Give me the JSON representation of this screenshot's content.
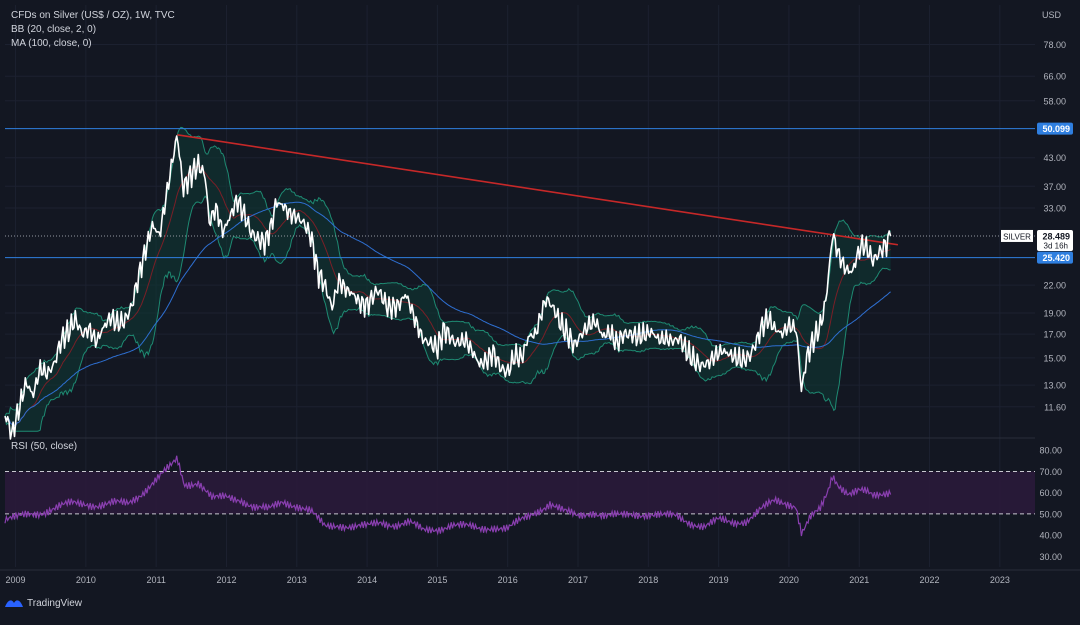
{
  "header": {
    "title": "CFDs on Silver (US$ / OZ), 1W, TVC",
    "indicator_bb": "BB (20, close, 2, 0)",
    "indicator_ma": "MA (100, close, 0)",
    "currency": "USD"
  },
  "rsi": {
    "label": "RSI (50, close)"
  },
  "footer": {
    "brand": "TradingView"
  },
  "colors": {
    "background": "#131722",
    "price": "#ffffff",
    "bb_basis": "#7a1f27",
    "bb_band": "#1e8a72",
    "bb_fill": "#0f3b35",
    "ma": "#2e6fd1",
    "trendline": "#c62828",
    "hline": "#2f7fe0",
    "rsi_line": "#8a3fb0",
    "rsi_fill": "#2a1a3a"
  },
  "chart_data": [
    {
      "type": "line",
      "symbol": "SILVER",
      "countdown": "3d 16h",
      "last_price": 28.489,
      "x_axis_ticks": [
        "2009",
        "2010",
        "2011",
        "2012",
        "2013",
        "2014",
        "2015",
        "2016",
        "2017",
        "2018",
        "2019",
        "2020",
        "2021",
        "2022",
        "2023"
      ],
      "y_axis_ticks": [
        78.0,
        66.0,
        58.0,
        50.099,
        43.0,
        37.0,
        33.0,
        28.489,
        25.42,
        22.0,
        19.0,
        17.0,
        15.0,
        13.0,
        11.6
      ],
      "y_scale": "log",
      "ylim": [
        10.0,
        96.0
      ],
      "xlim": [
        2008.85,
        2023.5
      ],
      "horizontal_lines": [
        50.099,
        25.42
      ],
      "trendline": {
        "from": [
          2011.3,
          48.5
        ],
        "to": [
          2021.55,
          27.2
        ]
      },
      "price_series": [
        [
          2008.85,
          11.2
        ],
        [
          2008.95,
          10.0
        ],
        [
          2009.05,
          11.5
        ],
        [
          2009.15,
          13.2
        ],
        [
          2009.25,
          12.3
        ],
        [
          2009.35,
          14.2
        ],
        [
          2009.45,
          13.8
        ],
        [
          2009.55,
          14.5
        ],
        [
          2009.65,
          16.5
        ],
        [
          2009.75,
          17.2
        ],
        [
          2009.85,
          18.4
        ],
        [
          2009.95,
          17.0
        ],
        [
          2010.05,
          17.5
        ],
        [
          2010.15,
          16.3
        ],
        [
          2010.25,
          17.6
        ],
        [
          2010.35,
          18.6
        ],
        [
          2010.45,
          18.0
        ],
        [
          2010.55,
          18.2
        ],
        [
          2010.65,
          19.6
        ],
        [
          2010.75,
          23.0
        ],
        [
          2010.85,
          26.5
        ],
        [
          2010.95,
          30.2
        ],
        [
          2011.05,
          28.5
        ],
        [
          2011.15,
          35.5
        ],
        [
          2011.25,
          44.0
        ],
        [
          2011.3,
          48.5
        ],
        [
          2011.38,
          36.5
        ],
        [
          2011.5,
          39.5
        ],
        [
          2011.6,
          41.5
        ],
        [
          2011.7,
          39.0
        ],
        [
          2011.75,
          30.5
        ],
        [
          2011.85,
          33.0
        ],
        [
          2011.95,
          29.0
        ],
        [
          2012.05,
          31.5
        ],
        [
          2012.15,
          34.5
        ],
        [
          2012.25,
          32.0
        ],
        [
          2012.35,
          29.0
        ],
        [
          2012.45,
          28.0
        ],
        [
          2012.55,
          27.5
        ],
        [
          2012.65,
          30.5
        ],
        [
          2012.7,
          34.0
        ],
        [
          2012.8,
          33.5
        ],
        [
          2012.9,
          32.0
        ],
        [
          2013.0,
          31.5
        ],
        [
          2013.1,
          30.5
        ],
        [
          2013.2,
          28.5
        ],
        [
          2013.3,
          23.5
        ],
        [
          2013.4,
          22.0
        ],
        [
          2013.5,
          19.5
        ],
        [
          2013.6,
          22.5
        ],
        [
          2013.7,
          21.5
        ],
        [
          2013.8,
          21.0
        ],
        [
          2013.9,
          20.0
        ],
        [
          2014.0,
          19.8
        ],
        [
          2014.15,
          21.5
        ],
        [
          2014.3,
          19.5
        ],
        [
          2014.45,
          19.8
        ],
        [
          2014.55,
          21.0
        ],
        [
          2014.7,
          18.0
        ],
        [
          2014.8,
          16.5
        ],
        [
          2014.9,
          16.2
        ],
        [
          2015.0,
          15.8
        ],
        [
          2015.1,
          17.5
        ],
        [
          2015.25,
          16.2
        ],
        [
          2015.4,
          16.5
        ],
        [
          2015.5,
          15.5
        ],
        [
          2015.6,
          14.5
        ],
        [
          2015.7,
          14.8
        ],
        [
          2015.8,
          15.5
        ],
        [
          2015.9,
          14.2
        ],
        [
          2016.0,
          13.9
        ],
        [
          2016.1,
          15.2
        ],
        [
          2016.2,
          15.0
        ],
        [
          2016.3,
          16.8
        ],
        [
          2016.4,
          17.0
        ],
        [
          2016.5,
          19.5
        ],
        [
          2016.55,
          20.5
        ],
        [
          2016.65,
          19.5
        ],
        [
          2016.75,
          18.0
        ],
        [
          2016.85,
          17.0
        ],
        [
          2016.95,
          16.0
        ],
        [
          2017.05,
          17.0
        ],
        [
          2017.15,
          17.8
        ],
        [
          2017.25,
          18.2
        ],
        [
          2017.35,
          16.8
        ],
        [
          2017.45,
          17.2
        ],
        [
          2017.55,
          16.2
        ],
        [
          2017.65,
          17.0
        ],
        [
          2017.75,
          17.0
        ],
        [
          2017.85,
          16.8
        ],
        [
          2017.95,
          17.0
        ],
        [
          2018.05,
          17.2
        ],
        [
          2018.15,
          16.5
        ],
        [
          2018.25,
          16.6
        ],
        [
          2018.35,
          16.4
        ],
        [
          2018.45,
          16.6
        ],
        [
          2018.55,
          15.5
        ],
        [
          2018.65,
          14.8
        ],
        [
          2018.75,
          14.4
        ],
        [
          2018.85,
          14.6
        ],
        [
          2018.95,
          15.2
        ],
        [
          2019.05,
          15.6
        ],
        [
          2019.15,
          15.3
        ],
        [
          2019.25,
          15.0
        ],
        [
          2019.35,
          14.8
        ],
        [
          2019.45,
          15.2
        ],
        [
          2019.55,
          16.5
        ],
        [
          2019.6,
          17.5
        ],
        [
          2019.7,
          18.5
        ],
        [
          2019.8,
          17.5
        ],
        [
          2019.9,
          17.0
        ],
        [
          2020.0,
          17.8
        ],
        [
          2020.1,
          17.5
        ],
        [
          2020.18,
          12.5
        ],
        [
          2020.25,
          15.0
        ],
        [
          2020.35,
          16.5
        ],
        [
          2020.45,
          17.8
        ],
        [
          2020.52,
          20.0
        ],
        [
          2020.58,
          24.5
        ],
        [
          2020.62,
          28.8
        ],
        [
          2020.7,
          26.0
        ],
        [
          2020.8,
          24.0
        ],
        [
          2020.9,
          23.5
        ],
        [
          2021.0,
          26.5
        ],
        [
          2021.05,
          27.3
        ],
        [
          2021.12,
          26.5
        ],
        [
          2021.2,
          25.0
        ],
        [
          2021.3,
          26.3
        ],
        [
          2021.4,
          27.5
        ],
        [
          2021.45,
          28.489
        ]
      ],
      "rsi": {
        "y_axis_ticks": [
          80.0,
          70.0,
          60.0,
          50.0,
          40.0,
          30.0
        ],
        "ylim": [
          25,
          82
        ],
        "levels": [
          70,
          50
        ],
        "series": [
          [
            2008.85,
            47
          ],
          [
            2009.0,
            48
          ],
          [
            2009.2,
            50
          ],
          [
            2009.4,
            51
          ],
          [
            2009.6,
            53
          ],
          [
            2009.8,
            55
          ],
          [
            2010.0,
            55
          ],
          [
            2010.2,
            54
          ],
          [
            2010.4,
            55
          ],
          [
            2010.6,
            55
          ],
          [
            2010.8,
            60
          ],
          [
            2011.0,
            66
          ],
          [
            2011.2,
            72
          ],
          [
            2011.3,
            76
          ],
          [
            2011.4,
            64
          ],
          [
            2011.6,
            65
          ],
          [
            2011.8,
            57
          ],
          [
            2012.0,
            58
          ],
          [
            2012.2,
            57
          ],
          [
            2012.4,
            53
          ],
          [
            2012.6,
            52
          ],
          [
            2012.8,
            56
          ],
          [
            2013.0,
            54
          ],
          [
            2013.2,
            51
          ],
          [
            2013.4,
            44
          ],
          [
            2013.6,
            45
          ],
          [
            2013.8,
            44
          ],
          [
            2014.0,
            44
          ],
          [
            2014.2,
            46
          ],
          [
            2014.4,
            45
          ],
          [
            2014.6,
            46
          ],
          [
            2014.8,
            42
          ],
          [
            2015.0,
            43
          ],
          [
            2015.2,
            45
          ],
          [
            2015.4,
            44
          ],
          [
            2015.6,
            43
          ],
          [
            2015.8,
            44
          ],
          [
            2016.0,
            43
          ],
          [
            2016.2,
            47
          ],
          [
            2016.4,
            51
          ],
          [
            2016.6,
            55
          ],
          [
            2016.8,
            51
          ],
          [
            2017.0,
            49
          ],
          [
            2017.2,
            51
          ],
          [
            2017.4,
            49
          ],
          [
            2017.6,
            49
          ],
          [
            2017.8,
            50
          ],
          [
            2018.0,
            50
          ],
          [
            2018.2,
            49
          ],
          [
            2018.4,
            49
          ],
          [
            2018.6,
            46
          ],
          [
            2018.8,
            44
          ],
          [
            2019.0,
            47
          ],
          [
            2019.2,
            46
          ],
          [
            2019.4,
            47
          ],
          [
            2019.6,
            52
          ],
          [
            2019.8,
            56
          ],
          [
            2020.0,
            55
          ],
          [
            2020.1,
            54
          ],
          [
            2020.18,
            41
          ],
          [
            2020.3,
            48
          ],
          [
            2020.45,
            52
          ],
          [
            2020.55,
            60
          ],
          [
            2020.62,
            68
          ],
          [
            2020.7,
            64
          ],
          [
            2020.85,
            60
          ],
          [
            2021.0,
            61
          ],
          [
            2021.1,
            60
          ],
          [
            2021.2,
            58
          ],
          [
            2021.3,
            59
          ],
          [
            2021.45,
            61
          ]
        ]
      }
    }
  ]
}
